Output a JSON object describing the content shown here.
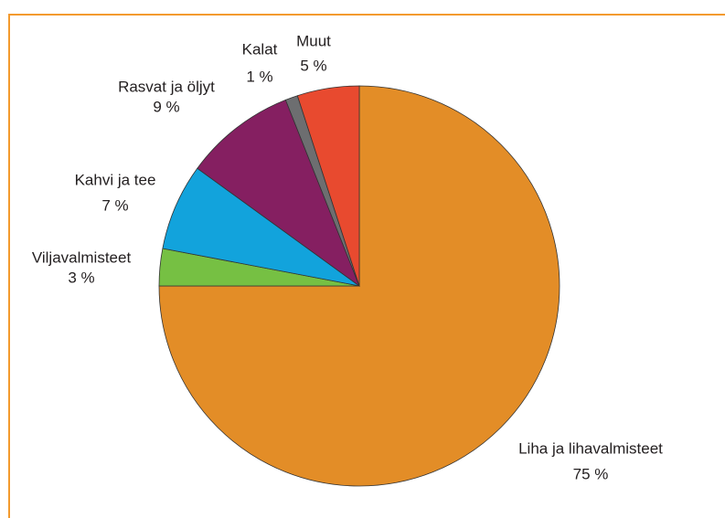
{
  "chart_data": {
    "type": "pie",
    "categories": [
      "Liha ja lihavalmisteet",
      "Viljavalmisteet",
      "Kahvi ja tee",
      "Rasvat ja öljyt",
      "Kalat",
      "Muut"
    ],
    "values": [
      75,
      3,
      7,
      9,
      1,
      5
    ],
    "value_labels": [
      "75 %",
      "3 %",
      "7 %",
      "9 %",
      "1 %",
      "5 %"
    ],
    "colors": [
      "#e38d27",
      "#76c043",
      "#12a3dc",
      "#851f61",
      "#6d6e70",
      "#e84a2f"
    ]
  }
}
